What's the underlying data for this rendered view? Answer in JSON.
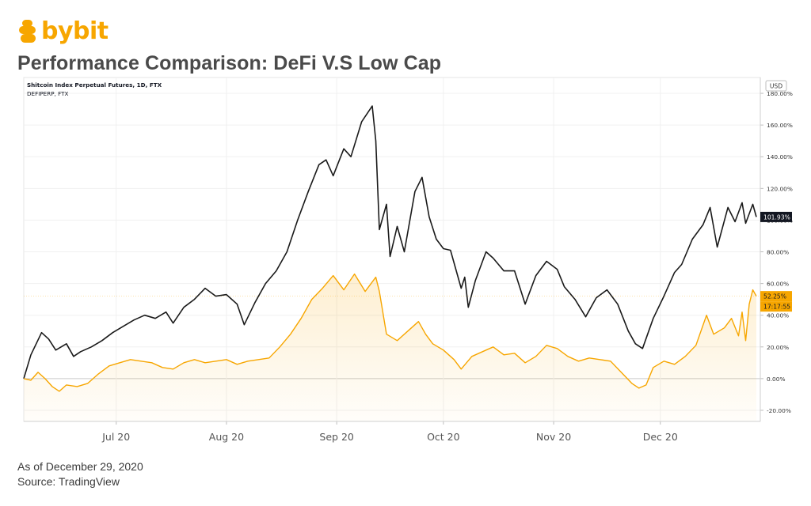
{
  "brand": {
    "name": "bybit",
    "accent": "#f7a600"
  },
  "title": "Performance Comparison: DeFi V.S Low Cap",
  "footer": {
    "date_note": "As of December 29, 2020",
    "source": "Source: TradingView"
  },
  "chart_data": {
    "type": "line",
    "legend": [
      "Shitcoin Index Perpetual Futures, 1D, FTX",
      "DEFIPERP, FTX"
    ],
    "currency_label": "USD",
    "x_tick_labels": [
      "Jul 20",
      "Aug 20",
      "Sep 20",
      "Oct 20",
      "Nov 20",
      "Dec 20"
    ],
    "y_tick_labels": [
      "180.00%",
      "160.00%",
      "140.00%",
      "120.00%",
      "100.00%",
      "80.00%",
      "60.00%",
      "40.00%",
      "20.00%",
      "0.00%",
      "-20.00%"
    ],
    "ylim": [
      -27,
      190
    ],
    "grid": true,
    "legend_placement": "top-left",
    "x_domain": [
      "2020-06-05",
      "2020-12-28"
    ],
    "series": [
      {
        "name": "Shitcoin Index Perpetual Futures, 1D, FTX",
        "color": "#1a1a1a",
        "last_value_label": "101.93%",
        "points": [
          [
            "2020-06-05",
            0
          ],
          [
            "2020-06-07",
            15
          ],
          [
            "2020-06-10",
            29
          ],
          [
            "2020-06-12",
            25
          ],
          [
            "2020-06-14",
            18
          ],
          [
            "2020-06-17",
            22
          ],
          [
            "2020-06-19",
            14
          ],
          [
            "2020-06-21",
            17
          ],
          [
            "2020-06-24",
            20
          ],
          [
            "2020-06-27",
            24
          ],
          [
            "2020-06-30",
            29
          ],
          [
            "2020-07-03",
            33
          ],
          [
            "2020-07-06",
            37
          ],
          [
            "2020-07-09",
            40
          ],
          [
            "2020-07-12",
            38
          ],
          [
            "2020-07-15",
            42
          ],
          [
            "2020-07-17",
            35
          ],
          [
            "2020-07-20",
            45
          ],
          [
            "2020-07-23",
            50
          ],
          [
            "2020-07-26",
            57
          ],
          [
            "2020-07-29",
            52
          ],
          [
            "2020-08-01",
            53
          ],
          [
            "2020-08-04",
            47
          ],
          [
            "2020-08-06",
            34
          ],
          [
            "2020-08-09",
            48
          ],
          [
            "2020-08-12",
            60
          ],
          [
            "2020-08-15",
            68
          ],
          [
            "2020-08-18",
            80
          ],
          [
            "2020-08-21",
            100
          ],
          [
            "2020-08-24",
            118
          ],
          [
            "2020-08-27",
            135
          ],
          [
            "2020-08-29",
            138
          ],
          [
            "2020-08-31",
            128
          ],
          [
            "2020-09-03",
            145
          ],
          [
            "2020-09-05",
            140
          ],
          [
            "2020-09-08",
            162
          ],
          [
            "2020-09-11",
            172
          ],
          [
            "2020-09-12",
            150
          ],
          [
            "2020-09-13",
            94
          ],
          [
            "2020-09-15",
            110
          ],
          [
            "2020-09-16",
            77
          ],
          [
            "2020-09-18",
            96
          ],
          [
            "2020-09-20",
            80
          ],
          [
            "2020-09-23",
            118
          ],
          [
            "2020-09-25",
            127
          ],
          [
            "2020-09-27",
            102
          ],
          [
            "2020-09-29",
            88
          ],
          [
            "2020-10-01",
            82
          ],
          [
            "2020-10-03",
            81
          ],
          [
            "2020-10-06",
            57
          ],
          [
            "2020-10-07",
            64
          ],
          [
            "2020-10-08",
            45
          ],
          [
            "2020-10-10",
            62
          ],
          [
            "2020-10-13",
            80
          ],
          [
            "2020-10-15",
            76
          ],
          [
            "2020-10-18",
            68
          ],
          [
            "2020-10-21",
            68
          ],
          [
            "2020-10-24",
            47
          ],
          [
            "2020-10-27",
            65
          ],
          [
            "2020-10-30",
            74
          ],
          [
            "2020-11-02",
            69
          ],
          [
            "2020-11-04",
            58
          ],
          [
            "2020-11-07",
            50
          ],
          [
            "2020-11-10",
            39
          ],
          [
            "2020-11-13",
            51
          ],
          [
            "2020-11-16",
            56
          ],
          [
            "2020-11-19",
            47
          ],
          [
            "2020-11-22",
            30
          ],
          [
            "2020-11-24",
            22
          ],
          [
            "2020-11-26",
            19
          ],
          [
            "2020-11-29",
            38
          ],
          [
            "2020-12-02",
            52
          ],
          [
            "2020-12-05",
            67
          ],
          [
            "2020-12-07",
            72
          ],
          [
            "2020-12-10",
            88
          ],
          [
            "2020-12-13",
            97
          ],
          [
            "2020-12-15",
            108
          ],
          [
            "2020-12-17",
            83
          ],
          [
            "2020-12-20",
            108
          ],
          [
            "2020-12-22",
            99
          ],
          [
            "2020-12-24",
            111
          ],
          [
            "2020-12-25",
            98
          ],
          [
            "2020-12-27",
            110
          ],
          [
            "2020-12-28",
            102
          ]
        ]
      },
      {
        "name": "DEFIPERP, FTX",
        "color": "#f7a600",
        "last_value_label": "52.25%",
        "countdown_label": "17:17:55",
        "points": [
          [
            "2020-06-05",
            0
          ],
          [
            "2020-06-07",
            -1
          ],
          [
            "2020-06-09",
            4
          ],
          [
            "2020-06-11",
            0
          ],
          [
            "2020-06-13",
            -5
          ],
          [
            "2020-06-15",
            -8
          ],
          [
            "2020-06-17",
            -4
          ],
          [
            "2020-06-20",
            -5
          ],
          [
            "2020-06-23",
            -3
          ],
          [
            "2020-06-26",
            3
          ],
          [
            "2020-06-29",
            8
          ],
          [
            "2020-07-02",
            10
          ],
          [
            "2020-07-05",
            12
          ],
          [
            "2020-07-08",
            11
          ],
          [
            "2020-07-11",
            10
          ],
          [
            "2020-07-14",
            7
          ],
          [
            "2020-07-17",
            6
          ],
          [
            "2020-07-20",
            10
          ],
          [
            "2020-07-23",
            12
          ],
          [
            "2020-07-26",
            10
          ],
          [
            "2020-07-29",
            11
          ],
          [
            "2020-08-01",
            12
          ],
          [
            "2020-08-04",
            9
          ],
          [
            "2020-08-07",
            11
          ],
          [
            "2020-08-10",
            12
          ],
          [
            "2020-08-13",
            13
          ],
          [
            "2020-08-16",
            20
          ],
          [
            "2020-08-19",
            28
          ],
          [
            "2020-08-22",
            38
          ],
          [
            "2020-08-25",
            50
          ],
          [
            "2020-08-28",
            57
          ],
          [
            "2020-08-31",
            65
          ],
          [
            "2020-09-03",
            56
          ],
          [
            "2020-09-06",
            66
          ],
          [
            "2020-09-09",
            55
          ],
          [
            "2020-09-12",
            64
          ],
          [
            "2020-09-13",
            55
          ],
          [
            "2020-09-15",
            28
          ],
          [
            "2020-09-18",
            24
          ],
          [
            "2020-09-21",
            30
          ],
          [
            "2020-09-24",
            36
          ],
          [
            "2020-09-26",
            28
          ],
          [
            "2020-09-28",
            22
          ],
          [
            "2020-10-01",
            18
          ],
          [
            "2020-10-04",
            12
          ],
          [
            "2020-10-06",
            6
          ],
          [
            "2020-10-09",
            14
          ],
          [
            "2020-10-12",
            17
          ],
          [
            "2020-10-15",
            20
          ],
          [
            "2020-10-18",
            15
          ],
          [
            "2020-10-21",
            16
          ],
          [
            "2020-10-24",
            10
          ],
          [
            "2020-10-27",
            14
          ],
          [
            "2020-10-30",
            21
          ],
          [
            "2020-11-02",
            19
          ],
          [
            "2020-11-05",
            14
          ],
          [
            "2020-11-08",
            11
          ],
          [
            "2020-11-11",
            13
          ],
          [
            "2020-11-14",
            12
          ],
          [
            "2020-11-17",
            11
          ],
          [
            "2020-11-20",
            4
          ],
          [
            "2020-11-23",
            -3
          ],
          [
            "2020-11-25",
            -6
          ],
          [
            "2020-11-27",
            -4
          ],
          [
            "2020-11-29",
            7
          ],
          [
            "2020-12-02",
            11
          ],
          [
            "2020-12-05",
            9
          ],
          [
            "2020-12-08",
            14
          ],
          [
            "2020-12-11",
            21
          ],
          [
            "2020-12-14",
            40
          ],
          [
            "2020-12-16",
            28
          ],
          [
            "2020-12-19",
            32
          ],
          [
            "2020-12-21",
            38
          ],
          [
            "2020-12-23",
            27
          ],
          [
            "2020-12-24",
            42
          ],
          [
            "2020-12-25",
            24
          ],
          [
            "2020-12-26",
            47
          ],
          [
            "2020-12-27",
            56
          ],
          [
            "2020-12-28",
            52
          ]
        ]
      }
    ]
  }
}
